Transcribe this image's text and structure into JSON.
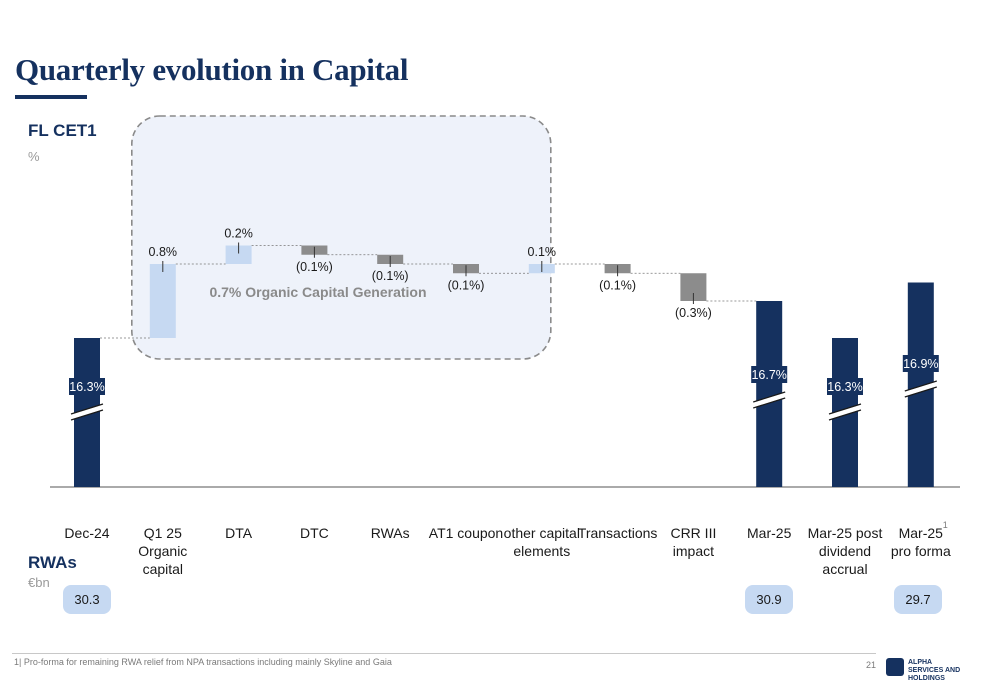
{
  "header": {
    "title": "Quarterly evolution in Capital"
  },
  "metric": {
    "name": "FL CET1",
    "unit": "%"
  },
  "rwas": {
    "title": "RWAs",
    "unit": "€bn",
    "values": [
      {
        "category": "Dec-24",
        "value": "30.3"
      },
      {
        "category": "Mar-25",
        "value": "30.9"
      },
      {
        "category": "Mar-25 pro forma",
        "value": "29.7"
      }
    ]
  },
  "footer": {
    "footnote": "1| Pro-forma for remaining RWA relief from NPA transactions including mainly Skyline and Gaia",
    "page_number": "21",
    "logo_text_1": "ALPHA",
    "logo_text_2": "SERVICES AND HOLDINGS"
  },
  "colors": {
    "total": "#15315f",
    "increase": "#c6d9f2",
    "decrease": "#8c8c8c",
    "highlight_box": "#eef2fa"
  },
  "chart_data": {
    "type": "bar",
    "subtype": "waterfall",
    "title": "Quarterly evolution in Capital",
    "ylabel": "FL CET1 %",
    "axis_break": true,
    "categories": [
      "Dec-24",
      "Q1 25 Organic capital",
      "DTA",
      "DTC",
      "RWAs",
      "AT1 coupon",
      "other capital elements",
      "Transactions",
      "CRR III impact",
      "Mar-25",
      "Mar-25 post dividend accrual",
      "Mar-25 pro forma"
    ],
    "category_labels": [
      [
        "Dec-24"
      ],
      [
        "Q1 25",
        "Organic",
        "capital"
      ],
      [
        "DTA"
      ],
      [
        "DTC"
      ],
      [
        "RWAs"
      ],
      [
        "AT1 coupon"
      ],
      [
        "other capital",
        "elements"
      ],
      [
        "Transactions"
      ],
      [
        "CRR III",
        "impact"
      ],
      [
        "Mar-25"
      ],
      [
        "Mar-25 post",
        "dividend",
        "accrual"
      ],
      [
        "Mar-25",
        "pro forma"
      ]
    ],
    "category_superscripts": [
      "",
      "",
      "",
      "",
      "",
      "",
      "",
      "",
      "",
      "",
      "",
      "1"
    ],
    "values": [
      16.3,
      0.8,
      0.2,
      -0.1,
      -0.1,
      -0.1,
      0.1,
      -0.1,
      -0.3,
      16.7,
      16.3,
      16.9
    ],
    "bar_kind": [
      "total",
      "increase",
      "increase",
      "decrease",
      "decrease",
      "decrease",
      "increase",
      "decrease",
      "decrease",
      "total",
      "total",
      "total"
    ],
    "labels": [
      "16.3%",
      "0.8%",
      "0.2%",
      "(0.1%)",
      "(0.1%)",
      "(0.1%)",
      "0.1%",
      "(0.1%)",
      "(0.3%)",
      "16.7%",
      "16.3%",
      "16.9%"
    ],
    "annotation": "0.7% Organic Capital Generation",
    "annotation_span": [
      "Q1 25 Organic capital",
      "other capital elements"
    ]
  }
}
